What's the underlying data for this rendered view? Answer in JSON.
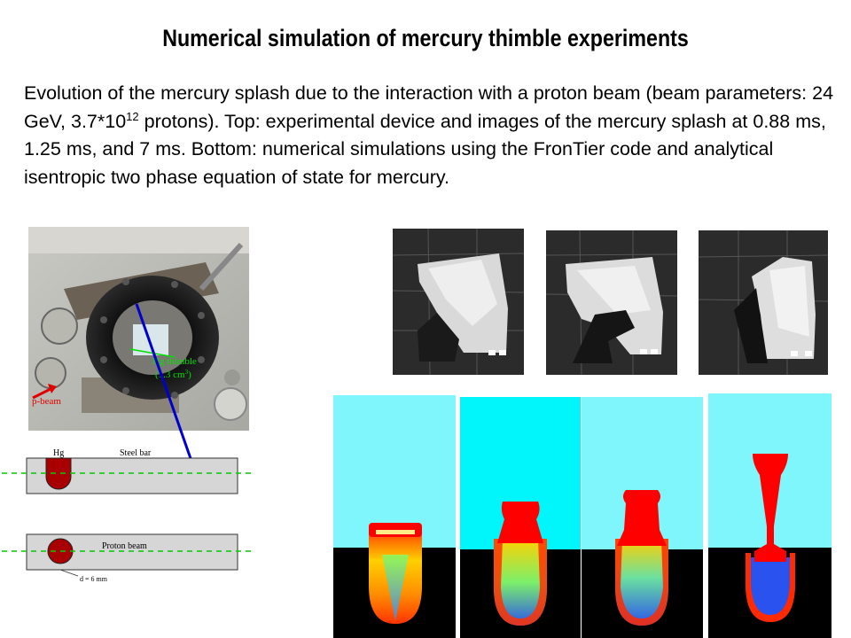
{
  "slide": {
    "title": "Numerical simulation of mercury thimble experiments",
    "caption": {
      "part1": "Evolution of the mercury splash due to the interaction with a proton beam (beam parameters: 24 GeV, 3.7*10",
      "exponent": "12",
      "part2": " protons).  Top: experimental device and images of the mercury splash at  0.88 ms,  1.25 ms, and  7 ms. Bottom: numerical simulations using the FronTier code and analytical isentropic two phase equation of state for mercury."
    }
  },
  "photo": {
    "label_thimble_line1": "Hg thimble",
    "label_thimble_line2": "(1.3 cm",
    "label_thimble_sup": "3",
    "label_thimble_end": ")",
    "label_beam": "p-beam"
  },
  "schematic": {
    "label_hg": "Hg",
    "label_steel": "Steel bar",
    "label_proton": "Proton beam",
    "label_diameter": "d = 6 mm"
  },
  "colors": {
    "sky": "#7ff6fb",
    "sky2": "#00f6fb",
    "mercury_red": "#ff0000",
    "mercury_blue": "#2a52ee",
    "beam_dash": "#00cc00",
    "arrow": "#0000cc"
  }
}
